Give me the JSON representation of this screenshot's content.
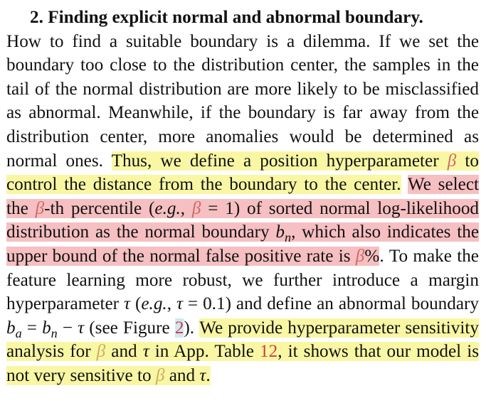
{
  "heading": "2. Finding explicit normal and abnormal boundary.",
  "paragraph": {
    "s1": "How to find a suitable boundary is a dilemma.  If we set the boundary too close to the distribution center, the sam­ples in the tail of the normal distribution are more likely to be misclassified as abnormal.  Meanwhile, if the bound­ary is far away from the distribution center, more anomalies would be determined as normal ones. ",
    "y1a": "Thus, we define a position hyperparameter ",
    "beta": "β",
    "y1b": " to control the distance from the boundary to the center.",
    "r1a": "We select the ",
    "r1b": "-th percentile (",
    "eg": "e.g.",
    "r1c": ", ",
    "r1d": " = 1) of sorted normal log-likelihood distribution as the normal boundary ",
    "b": "b",
    "n": "n",
    "r1e": ", which also indicates the upper bound of the normal false positive rate is ",
    "pct": "%",
    "s2a": ". To make the feature learning more robust, we further introduce a margin hyper­parameter ",
    "tau": "τ",
    "s2b": " (",
    "s2c": ", ",
    "s2d": " = 0.1) and define an abnormal bound­ary ",
    "a": "a",
    "eq": " = ",
    "minus": " − ",
    "s2e": " (see Figure ",
    "fig_ref": "2",
    "s2f": "). ",
    "y2a": "We provide hyperparameter sensitivity analysis for ",
    "y2b": " and ",
    "y2c": " in App. Table ",
    "table_ref": "12",
    "y2d": ", it shows that our model is not very sensitive to ",
    "y2e": " and ",
    "y2f": "."
  }
}
